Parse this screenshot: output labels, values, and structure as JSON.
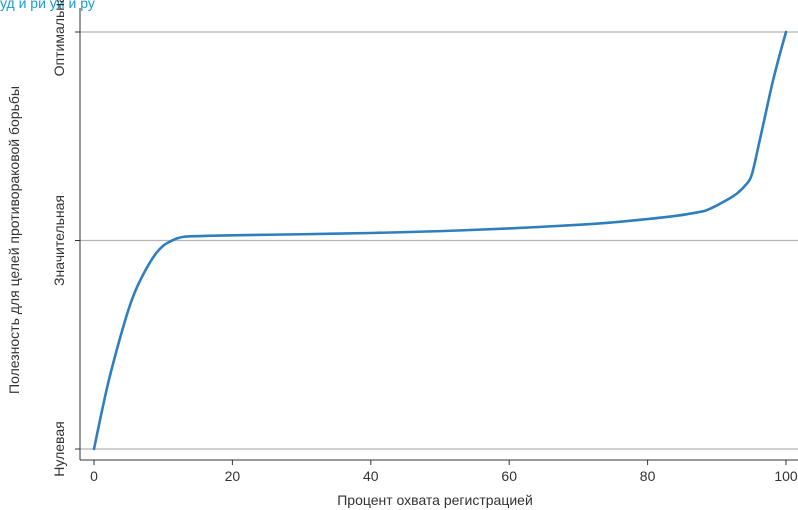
{
  "header": {
    "text": "уд и ри уи и ру"
  },
  "chart_data": {
    "type": "line",
    "title": "",
    "xlabel": "Процент охвата регистрацией",
    "ylabel": "Полезность для целей противораковой борьбы",
    "xlim": [
      0,
      100
    ],
    "ylim": [
      0,
      2
    ],
    "x_ticks": [
      0,
      20,
      40,
      60,
      80,
      100
    ],
    "x_tick_labels": [
      "0",
      "20",
      "40",
      "60",
      "80",
      "100"
    ],
    "y_ticks": [
      0,
      1,
      2
    ],
    "y_tick_labels": [
      "Нулевая",
      "Значительная",
      "Оптимальная"
    ],
    "grid": "horizontal",
    "colors": {
      "line": "#2f7fbf",
      "grid": "#b5b5b5",
      "axis": "#333333",
      "header": "#1a9ad6"
    },
    "series": [
      {
        "x": [
          0,
          1,
          2,
          3,
          4,
          5,
          6,
          7,
          8,
          9,
          10,
          11,
          12,
          13,
          14,
          16,
          20,
          30,
          40,
          50,
          60,
          70,
          75,
          80,
          84,
          86,
          88,
          89,
          90,
          91,
          92,
          93,
          94,
          95,
          96,
          97,
          98,
          99,
          100
        ],
        "y": [
          0,
          0.16,
          0.31,
          0.44,
          0.56,
          0.67,
          0.76,
          0.83,
          0.89,
          0.94,
          0.975,
          0.995,
          1.01,
          1.018,
          1.02,
          1.022,
          1.025,
          1.03,
          1.036,
          1.045,
          1.058,
          1.075,
          1.087,
          1.103,
          1.118,
          1.128,
          1.14,
          1.152,
          1.168,
          1.186,
          1.205,
          1.228,
          1.26,
          1.31,
          1.45,
          1.6,
          1.75,
          1.88,
          2.0
        ]
      }
    ]
  }
}
